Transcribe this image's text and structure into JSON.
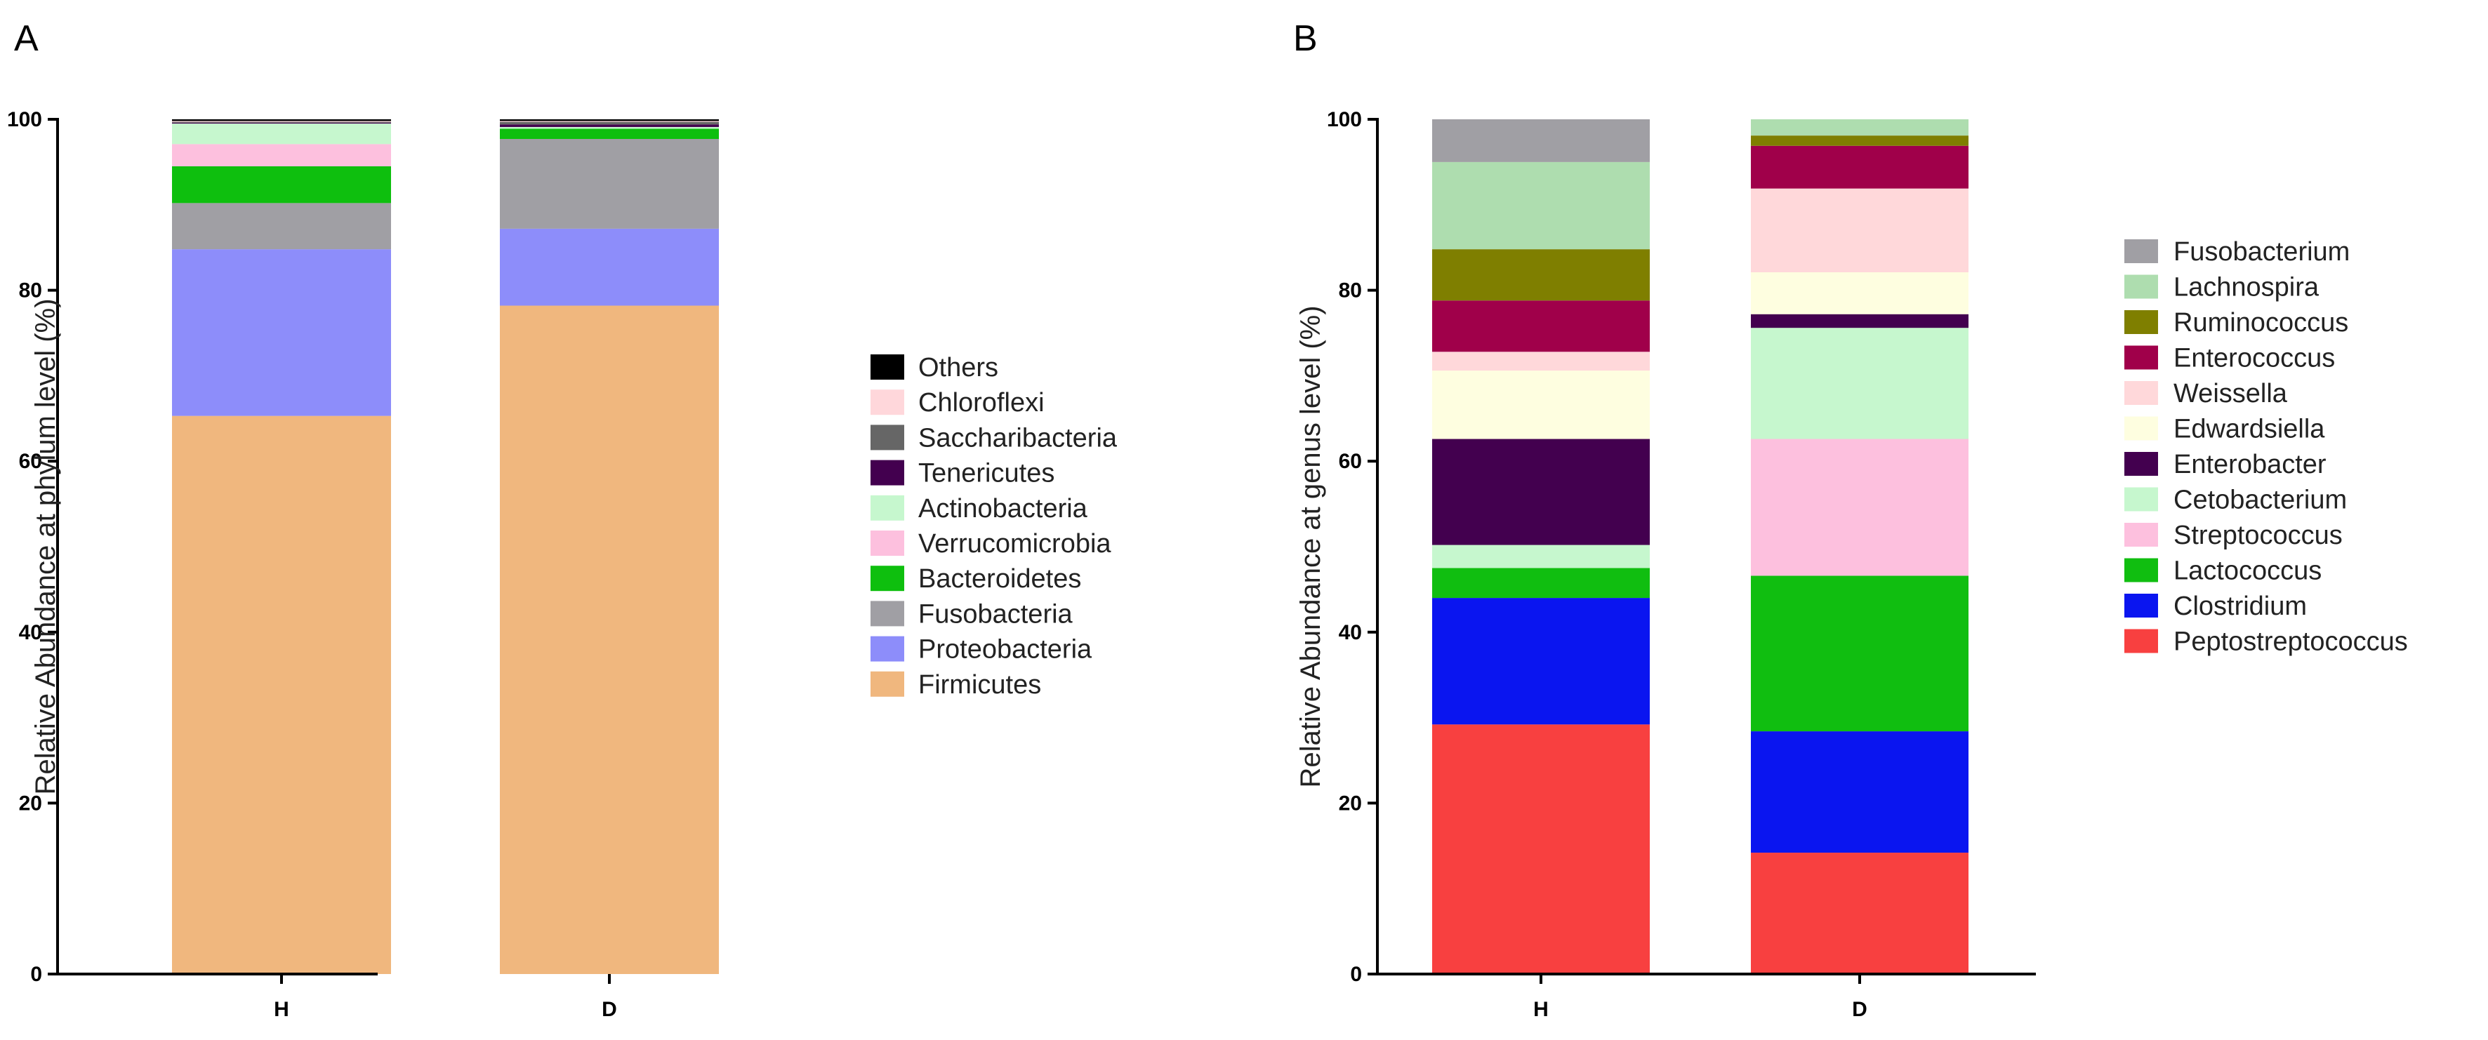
{
  "chart_data": [
    {
      "panel_label": "A",
      "type": "bar",
      "stacked": true,
      "categories": [
        "H",
        "D"
      ],
      "ylabel": "Relative Abundance at phylum level (%)",
      "xlabel": "",
      "ylim": [
        0,
        100
      ],
      "yticks": [
        0,
        20,
        40,
        60,
        80,
        100
      ],
      "grid": false,
      "legend_position": "right",
      "legend_order": [
        "Others",
        "Chloroflexi",
        "Saccharibacteria",
        "Tenericutes",
        "Actinobacteria",
        "Verrucomicrobia",
        "Bacteroidetes",
        "Fusobacteria",
        "Proteobacteria",
        "Firmicutes"
      ],
      "series": [
        {
          "name": "Firmicutes",
          "color": "#F0B77E",
          "values": [
            65.3,
            78.2
          ]
        },
        {
          "name": "Proteobacteria",
          "color": "#8D8DFA",
          "values": [
            19.5,
            9.0
          ]
        },
        {
          "name": "Fusobacteria",
          "color": "#A09FA4",
          "values": [
            5.4,
            10.5
          ]
        },
        {
          "name": "Bacteroidetes",
          "color": "#0EBF0E",
          "values": [
            4.3,
            1.2
          ]
        },
        {
          "name": "Verrucomicrobia",
          "color": "#FDC0DE",
          "values": [
            2.6,
            0.0
          ]
        },
        {
          "name": "Actinobacteria",
          "color": "#C6F7CE",
          "values": [
            2.4,
            0.2
          ]
        },
        {
          "name": "Tenericutes",
          "color": "#43004F",
          "values": [
            0.1,
            0.3
          ]
        },
        {
          "name": "Saccharibacteria",
          "color": "#666666",
          "values": [
            0.1,
            0.3
          ]
        },
        {
          "name": "Chloroflexi",
          "color": "#FFD7DB",
          "values": [
            0.1,
            0.1
          ]
        },
        {
          "name": "Others",
          "color": "#000000",
          "values": [
            0.2,
            0.2
          ]
        }
      ]
    },
    {
      "panel_label": "B",
      "type": "bar",
      "stacked": true,
      "categories": [
        "H",
        "D"
      ],
      "ylabel": "Relative Abundance at  genus level (%)",
      "xlabel": "",
      "ylim": [
        0,
        100
      ],
      "yticks": [
        0,
        20,
        40,
        60,
        80,
        100
      ],
      "grid": false,
      "legend_position": "right",
      "legend_order": [
        "Fusobacterium",
        "Lachnospira",
        "Ruminococcus",
        "Enterococcus",
        "Weissella",
        "Edwardsiella",
        "Enterobacter",
        "Cetobacterium",
        "Streptococcus",
        "Lactococcus",
        "Clostridium",
        "Peptostreptococcus"
      ],
      "series": [
        {
          "name": "Peptostreptococcus",
          "color": "#F84040",
          "values": [
            29.2,
            14.2
          ]
        },
        {
          "name": "Clostridium",
          "color": "#0A15F0",
          "values": [
            14.8,
            14.2
          ]
        },
        {
          "name": "Lactococcus",
          "color": "#10BE10",
          "values": [
            3.5,
            18.2
          ]
        },
        {
          "name": "Streptococcus",
          "color": "#FDC0DE",
          "values": [
            0.0,
            16.0
          ]
        },
        {
          "name": "Cetobacterium",
          "color": "#C6F7CE",
          "values": [
            2.7,
            13.0
          ]
        },
        {
          "name": "Enterobacter",
          "color": "#43004F",
          "values": [
            12.4,
            1.6
          ]
        },
        {
          "name": "Edwardsiella",
          "color": "#FEFEE0",
          "values": [
            8.0,
            4.9
          ]
        },
        {
          "name": "Weissella",
          "color": "#FFD8DA",
          "values": [
            2.2,
            9.8
          ]
        },
        {
          "name": "Enterococcus",
          "color": "#A0004A",
          "values": [
            6.0,
            5.0
          ]
        },
        {
          "name": "Ruminococcus",
          "color": "#7F7F00",
          "values": [
            6.0,
            1.2
          ]
        },
        {
          "name": "Lachnospira",
          "color": "#AEDDAF",
          "values": [
            10.2,
            1.9
          ]
        },
        {
          "name": "Fusobacterium",
          "color": "#A09FA4",
          "values": [
            5.0,
            0.0
          ]
        }
      ]
    }
  ]
}
